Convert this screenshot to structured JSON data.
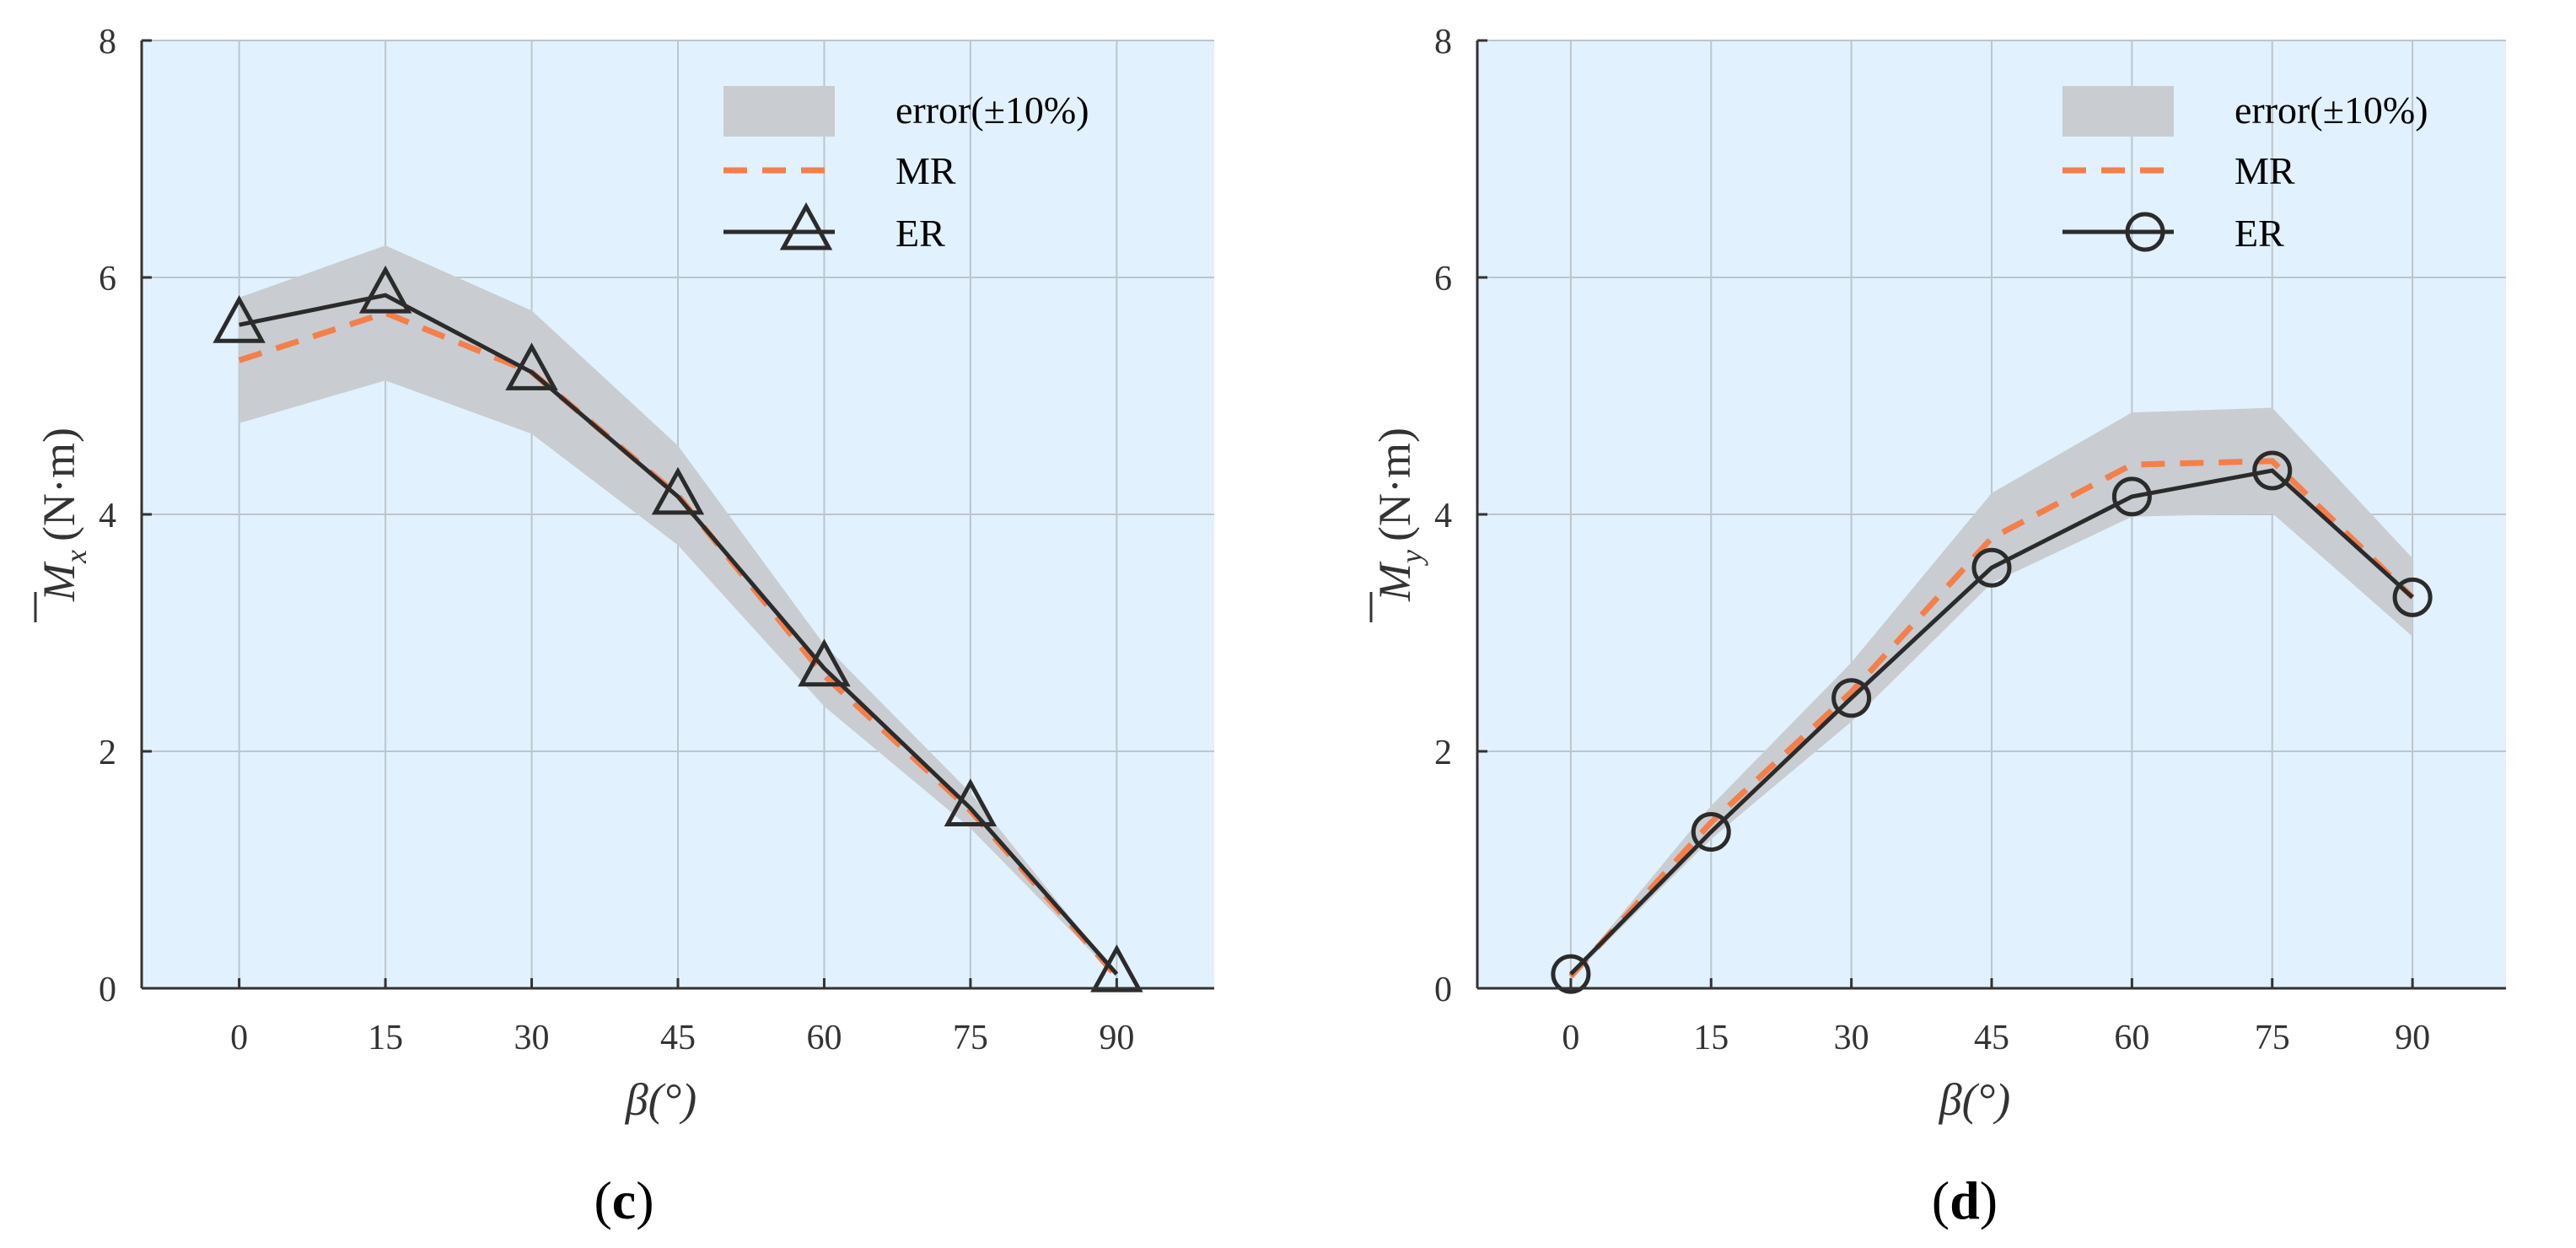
{
  "chart_data": [
    {
      "type": "line",
      "panel_label": "c",
      "xlabel": "β(°)",
      "ylabel_symbol": "M",
      "ylabel_subscript": "x",
      "ylabel_unit": "(N·m)",
      "x": [
        0,
        15,
        30,
        45,
        60,
        75,
        90
      ],
      "xlim": [
        -10,
        100
      ],
      "ylim": [
        0,
        8
      ],
      "x_ticks": [
        "0",
        "15",
        "30",
        "45",
        "60",
        "75",
        "90"
      ],
      "y_ticks": [
        "0",
        "2",
        "4",
        "6",
        "8"
      ],
      "grid": true,
      "legend_position": "top-right",
      "marker": "triangle",
      "series": [
        {
          "name": "error(±10%)",
          "kind": "band",
          "color": "#c9cdd1",
          "lower": [
            4.77,
            5.13,
            4.68,
            3.74,
            2.38,
            1.35,
            0.09
          ],
          "upper": [
            5.83,
            6.27,
            5.72,
            4.58,
            2.9,
            1.65,
            0.11
          ]
        },
        {
          "name": "MR",
          "kind": "dashed",
          "color": "#f47f4b",
          "values": [
            5.3,
            5.7,
            5.2,
            4.16,
            2.64,
            1.5,
            0.1
          ]
        },
        {
          "name": "ER",
          "kind": "line-marker",
          "color": "#2b2b2b",
          "values": [
            5.6,
            5.85,
            5.2,
            4.15,
            2.7,
            1.52,
            0.12
          ]
        }
      ]
    },
    {
      "type": "line",
      "panel_label": "d",
      "xlabel": "β(°)",
      "ylabel_symbol": "M",
      "ylabel_subscript": "y",
      "ylabel_unit": "(N·m)",
      "x": [
        0,
        15,
        30,
        45,
        60,
        75,
        90
      ],
      "xlim": [
        -10,
        100
      ],
      "ylim": [
        0,
        8
      ],
      "x_ticks": [
        "0",
        "15",
        "30",
        "45",
        "60",
        "75",
        "90"
      ],
      "y_ticks": [
        "0",
        "2",
        "4",
        "6",
        "8"
      ],
      "grid": true,
      "legend_position": "top-right",
      "marker": "circle",
      "series": [
        {
          "name": "error(±10%)",
          "kind": "band",
          "color": "#c9cdd1",
          "lower": [
            0.09,
            1.26,
            2.25,
            3.42,
            3.98,
            4.01,
            2.97
          ],
          "upper": [
            0.11,
            1.54,
            2.75,
            4.18,
            4.86,
            4.9,
            3.63
          ]
        },
        {
          "name": "MR",
          "kind": "dashed",
          "color": "#f47f4b",
          "values": [
            0.1,
            1.4,
            2.5,
            3.8,
            4.42,
            4.45,
            3.3
          ]
        },
        {
          "name": "ER",
          "kind": "line-marker",
          "color": "#2b2b2b",
          "values": [
            0.12,
            1.32,
            2.45,
            3.55,
            4.15,
            4.37,
            3.3
          ]
        }
      ]
    }
  ],
  "colors": {
    "plot_background": "#e1f1fd",
    "grid": "#bcc6cc",
    "axis": "#333333"
  }
}
